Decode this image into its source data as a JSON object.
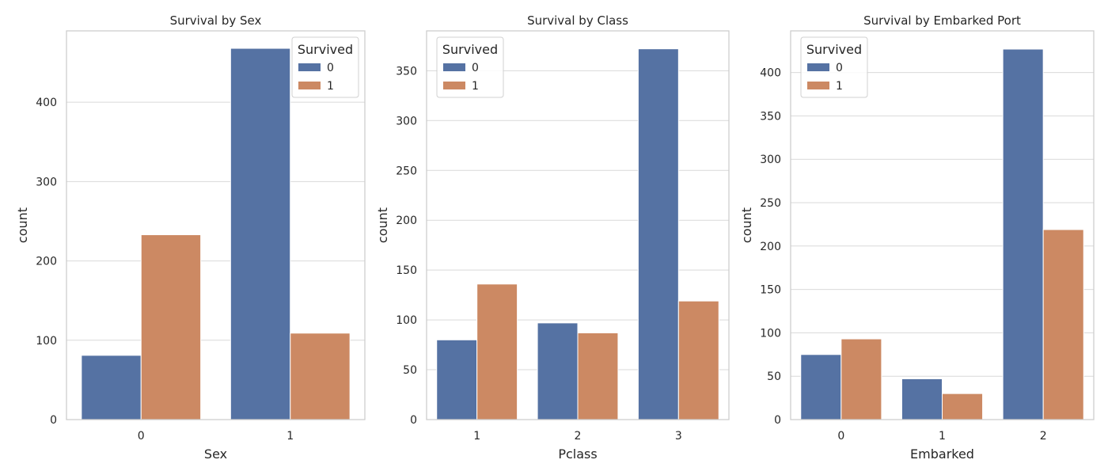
{
  "chart_data": [
    {
      "type": "bar",
      "title": "Survival by Sex",
      "xlabel": "Sex",
      "ylabel": "count",
      "categories": [
        "0",
        "1"
      ],
      "series": [
        {
          "name": "0",
          "values": [
            81,
            468
          ]
        },
        {
          "name": "1",
          "values": [
            233,
            109
          ]
        }
      ],
      "ylim": [
        0,
        490
      ],
      "yticks": [
        0,
        100,
        200,
        300,
        400
      ],
      "grid": true,
      "legend": {
        "title": "Survived",
        "position": "top-right"
      }
    },
    {
      "type": "bar",
      "title": "Survival by Class",
      "xlabel": "Pclass",
      "ylabel": "count",
      "categories": [
        "1",
        "2",
        "3"
      ],
      "series": [
        {
          "name": "0",
          "values": [
            80,
            97,
            372
          ]
        },
        {
          "name": "1",
          "values": [
            136,
            87,
            119
          ]
        }
      ],
      "ylim": [
        0,
        390
      ],
      "yticks": [
        0,
        50,
        100,
        150,
        200,
        250,
        300,
        350
      ],
      "grid": true,
      "legend": {
        "title": "Survived",
        "position": "top-left"
      }
    },
    {
      "type": "bar",
      "title": "Survival by Embarked Port",
      "xlabel": "Embarked",
      "ylabel": "count",
      "categories": [
        "0",
        "1",
        "2"
      ],
      "series": [
        {
          "name": "0",
          "values": [
            75,
            47,
            427
          ]
        },
        {
          "name": "1",
          "values": [
            93,
            30,
            219
          ]
        }
      ],
      "ylim": [
        0,
        448
      ],
      "yticks": [
        0,
        50,
        100,
        150,
        200,
        250,
        300,
        350,
        400
      ],
      "grid": true,
      "legend": {
        "title": "Survived",
        "position": "top-left"
      }
    }
  ],
  "colors": {
    "series_0": "#5572a3",
    "series_1": "#cc8963",
    "grid": "#d9d9d9",
    "axes_edge": "#cccccc",
    "text": "#262626"
  }
}
